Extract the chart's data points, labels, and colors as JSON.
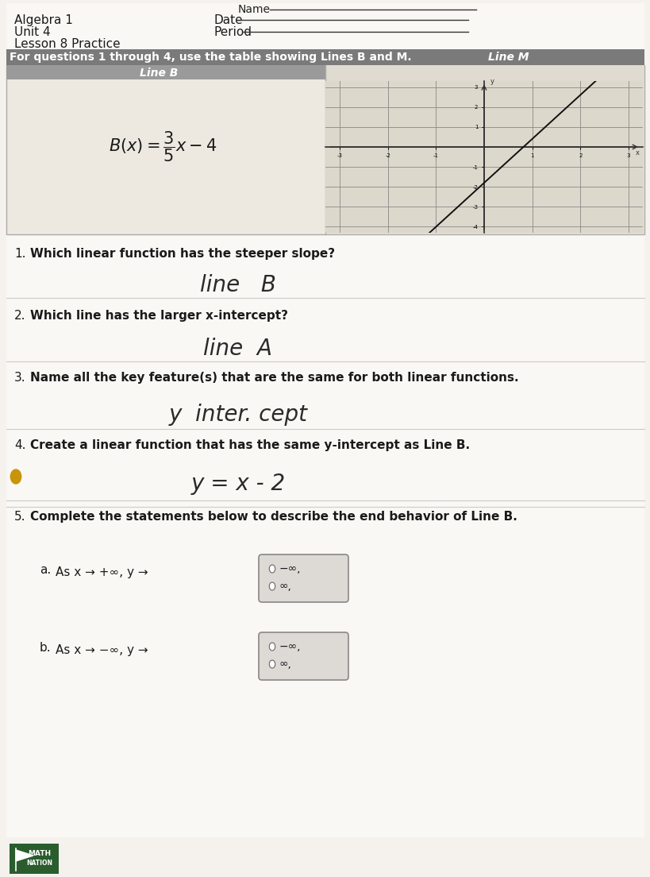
{
  "page_bg": "#f5f2ed",
  "white": "#ffffff",
  "header": {
    "line1": "Algebra 1",
    "line2": "Unit 4",
    "line3": "Lesson 8 Practice",
    "date_label": "Date",
    "period_label": "Period"
  },
  "intro_text": "For questions 1 through 4, use the table showing Lines B and M.",
  "line_b_label": "Line B",
  "line_m_label": "Line M",
  "graph_xlim": [
    -3,
    3
  ],
  "graph_ylim": [
    -4,
    3
  ],
  "graph_slope": 2.2,
  "graph_intercept": -1.8,
  "questions": [
    {
      "num": "1.",
      "text": "Which linear function has the steeper slope?",
      "answer": "line   B",
      "answer_size": 20
    },
    {
      "num": "2.",
      "text": "Which line has the larger x-intercept?",
      "answer": "line  A",
      "answer_size": 20
    },
    {
      "num": "3.",
      "text": "Name all the key feature(s) that are the same for both linear functions.",
      "answer": "y  inter. cept",
      "answer_size": 20
    },
    {
      "num": "4.",
      "text": "Create a linear function that has the same y-intercept as Line B.",
      "answer": "y = x - 2",
      "answer_size": 20
    }
  ],
  "q5_text": "Complete the statements below to describe the end behavior of Line B.",
  "q5a_text": "As x → +∞, y →",
  "q5b_text": "As x → −∞, y →",
  "box_options_a": [
    "−∞,",
    "∞,"
  ],
  "box_options_b": [
    "−∞,",
    "∞,"
  ],
  "header_bar_color": "#7a7a7a",
  "table_header_color": "#9a9a9a",
  "dot_color": "#c8940a"
}
